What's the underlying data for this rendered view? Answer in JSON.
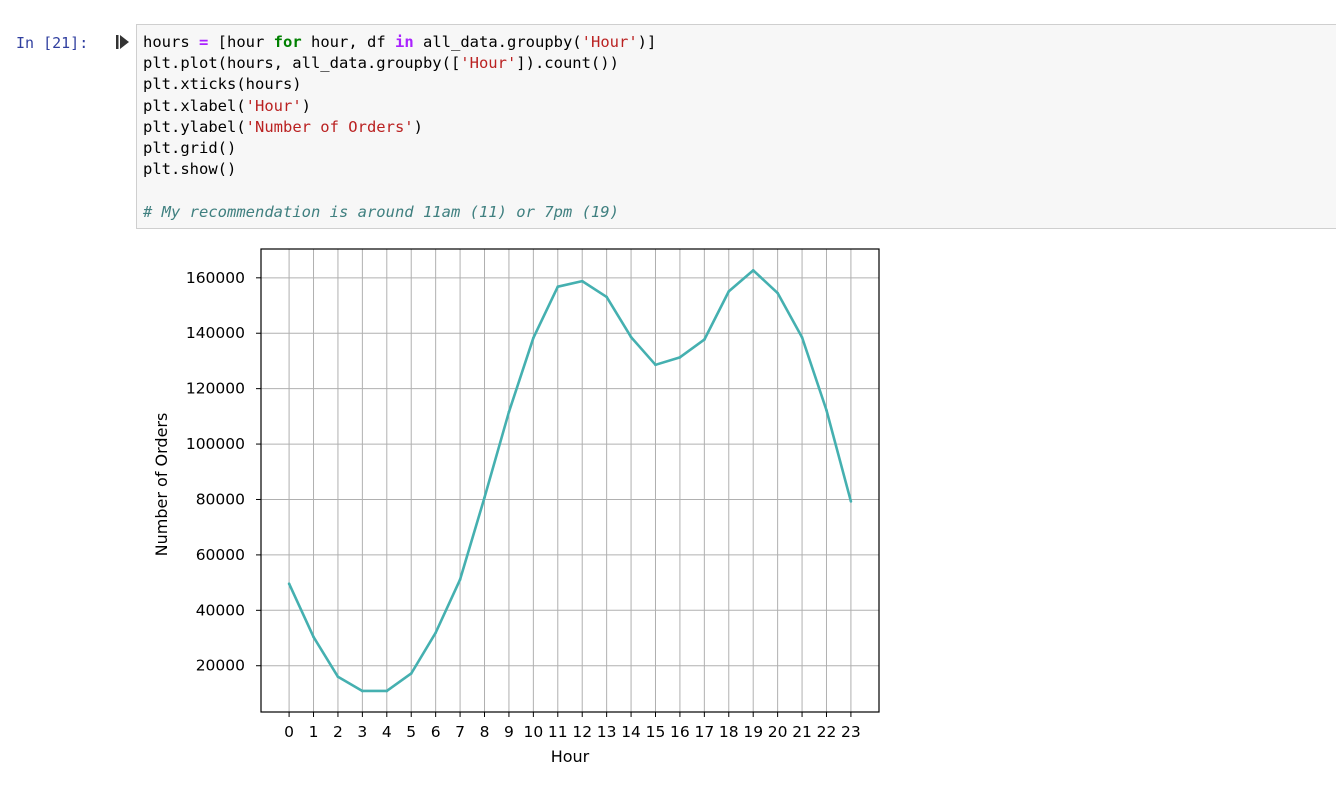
{
  "cell": {
    "prompt": "In [21]:",
    "code_lines": [
      [
        {
          "t": "hours ",
          "c": ""
        },
        {
          "t": "=",
          "c": "op"
        },
        {
          "t": " [hour ",
          "c": ""
        },
        {
          "t": "for",
          "c": "kw"
        },
        {
          "t": " hour, df ",
          "c": ""
        },
        {
          "t": "in",
          "c": "op"
        },
        {
          "t": " all_data.groupby(",
          "c": ""
        },
        {
          "t": "'Hour'",
          "c": "str"
        },
        {
          "t": ")]",
          "c": ""
        }
      ],
      [
        {
          "t": "plt.plot(hours, all_data.groupby([",
          "c": ""
        },
        {
          "t": "'Hour'",
          "c": "str"
        },
        {
          "t": "]).count())",
          "c": ""
        }
      ],
      [
        {
          "t": "plt.xticks(hours)",
          "c": ""
        }
      ],
      [
        {
          "t": "plt.xlabel(",
          "c": ""
        },
        {
          "t": "'Hour'",
          "c": "str"
        },
        {
          "t": ")",
          "c": ""
        }
      ],
      [
        {
          "t": "plt.ylabel(",
          "c": ""
        },
        {
          "t": "'Number of Orders'",
          "c": "str"
        },
        {
          "t": ")",
          "c": ""
        }
      ],
      [
        {
          "t": "plt.grid()",
          "c": ""
        }
      ],
      [
        {
          "t": "plt.show()",
          "c": ""
        }
      ],
      [
        {
          "t": "",
          "c": ""
        }
      ],
      [
        {
          "t": "# My recommendation is around 11am (11) or 7pm (19)",
          "c": "cm"
        }
      ]
    ]
  },
  "chart_data": {
    "type": "line",
    "title": "",
    "xlabel": "Hour",
    "ylabel": "Number of Orders",
    "x": [
      0,
      1,
      2,
      3,
      4,
      5,
      6,
      7,
      8,
      9,
      10,
      11,
      12,
      13,
      14,
      15,
      16,
      17,
      18,
      19,
      20,
      21,
      22,
      23
    ],
    "series": [
      {
        "color": "#45b0b0",
        "values": [
          49600,
          30400,
          16000,
          10900,
          10900,
          17200,
          31900,
          51100,
          80700,
          111600,
          138300,
          156800,
          158800,
          153100,
          138600,
          128600,
          131300,
          137700,
          155100,
          162700,
          154500,
          138500,
          112200,
          79300
        ]
      }
    ],
    "yticks": [
      20000,
      40000,
      60000,
      80000,
      100000,
      120000,
      140000,
      160000
    ],
    "ytick_labels": [
      "20000",
      "40000",
      "60000",
      "80000",
      "100000",
      "120000",
      "140000",
      "160000"
    ],
    "xtick_labels": [
      "0",
      "1",
      "2",
      "3",
      "4",
      "5",
      "6",
      "7",
      "8",
      "9",
      "10",
      "11",
      "12",
      "13",
      "14",
      "15",
      "16",
      "17",
      "18",
      "19",
      "20",
      "21",
      "22",
      "23"
    ],
    "xlim": [
      -1.15,
      24.15
    ],
    "ylim": [
      3300,
      170400
    ],
    "grid": true
  }
}
